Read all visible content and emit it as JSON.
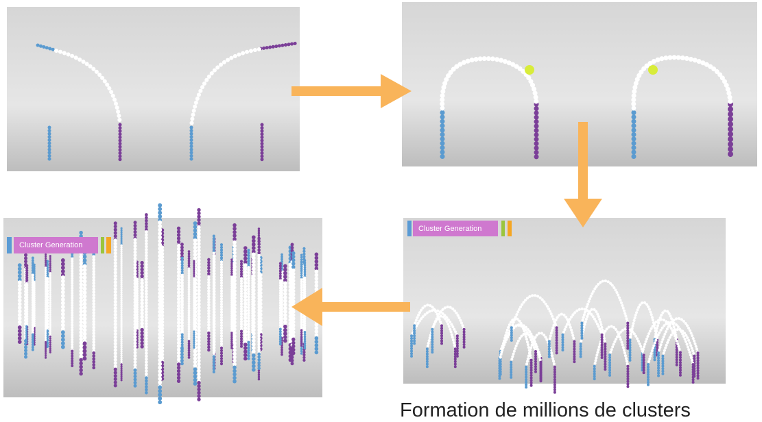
{
  "panels": [
    {
      "label": "Cluster Generation"
    },
    {
      "label": "Cluster Generation"
    }
  ],
  "caption": "Formation de millions de clusters"
}
